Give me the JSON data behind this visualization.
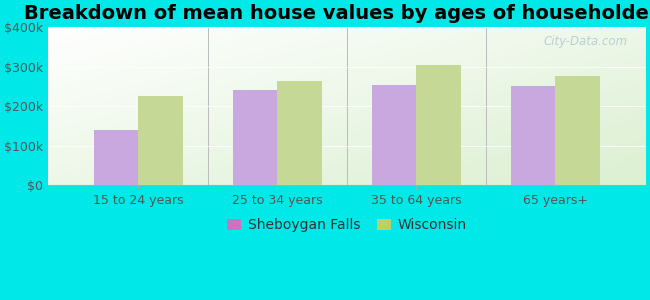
{
  "title": "Breakdown of mean house values by ages of householders",
  "categories": [
    "15 to 24 years",
    "25 to 34 years",
    "35 to 64 years",
    "65 years+"
  ],
  "series": {
    "Sheboygan Falls": [
      140000,
      240000,
      253000,
      251000
    ],
    "Wisconsin": [
      225000,
      265000,
      305000,
      278000
    ]
  },
  "bar_colors": {
    "Sheboygan Falls": "#c9a8e0",
    "Wisconsin": "#c5d896"
  },
  "legend_marker_colors": {
    "Sheboygan Falls": "#d070c0",
    "Wisconsin": "#c0d060"
  },
  "ylim": [
    0,
    400000
  ],
  "yticks": [
    0,
    100000,
    200000,
    300000,
    400000
  ],
  "ytick_labels": [
    "$0",
    "$100k",
    "$200k",
    "$300k",
    "$400k"
  ],
  "background_color": "#00e8e8",
  "title_fontsize": 14,
  "tick_fontsize": 9,
  "legend_fontsize": 10,
  "bar_width": 0.32,
  "watermark": "City-Data.com"
}
